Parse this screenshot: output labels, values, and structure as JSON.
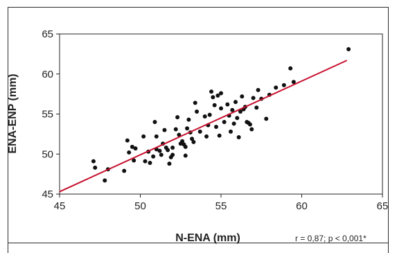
{
  "chart_data": {
    "type": "scatter",
    "title": "",
    "xlabel": "N-ENA (mm)",
    "ylabel": "ENA-ENP (mm)",
    "xlim": [
      45,
      65
    ],
    "ylim": [
      45,
      65
    ],
    "xticks": [
      45,
      50,
      55,
      60,
      65
    ],
    "yticks": [
      45,
      50,
      55,
      60,
      65
    ],
    "grid": false,
    "annotation": "r = 0,87; p < 0,001*",
    "colors": {
      "points": "#111111",
      "trend_line": "#c8102e",
      "frame": "#2a2a2a"
    },
    "trend_line": {
      "x": [
        45.0,
        62.8
      ],
      "y": [
        45.3,
        61.7
      ]
    },
    "series": [
      {
        "points": [
          [
            47.1,
            49.1
          ],
          [
            47.2,
            48.3
          ],
          [
            47.8,
            46.7
          ],
          [
            48.0,
            48.1
          ],
          [
            49.0,
            47.9
          ],
          [
            49.2,
            51.7
          ],
          [
            49.3,
            50.2
          ],
          [
            49.5,
            50.9
          ],
          [
            49.6,
            49.2
          ],
          [
            49.7,
            50.7
          ],
          [
            50.2,
            52.2
          ],
          [
            50.3,
            49.1
          ],
          [
            50.5,
            50.3
          ],
          [
            50.6,
            48.9
          ],
          [
            50.8,
            49.7
          ],
          [
            50.9,
            54.0
          ],
          [
            51.0,
            52.2
          ],
          [
            51.0,
            50.6
          ],
          [
            51.2,
            50.4
          ],
          [
            51.3,
            49.9
          ],
          [
            51.4,
            51.3
          ],
          [
            51.5,
            53.0
          ],
          [
            51.6,
            50.8
          ],
          [
            51.7,
            50.5
          ],
          [
            51.8,
            48.8
          ],
          [
            51.9,
            49.6
          ],
          [
            52.0,
            49.9
          ],
          [
            52.0,
            50.8
          ],
          [
            52.2,
            53.1
          ],
          [
            52.3,
            54.6
          ],
          [
            52.4,
            52.4
          ],
          [
            52.5,
            51.3
          ],
          [
            52.6,
            51.6
          ],
          [
            52.7,
            51.2
          ],
          [
            52.8,
            50.9
          ],
          [
            52.8,
            49.8
          ],
          [
            52.9,
            53.2
          ],
          [
            53.0,
            54.3
          ],
          [
            53.1,
            52.7
          ],
          [
            53.2,
            51.9
          ],
          [
            53.3,
            51.5
          ],
          [
            53.4,
            56.4
          ],
          [
            53.5,
            55.3
          ],
          [
            53.7,
            52.8
          ],
          [
            54.0,
            54.7
          ],
          [
            54.1,
            52.2
          ],
          [
            54.2,
            53.6
          ],
          [
            54.3,
            54.9
          ],
          [
            54.4,
            57.8
          ],
          [
            54.5,
            57.1
          ],
          [
            54.6,
            56.1
          ],
          [
            54.7,
            53.4
          ],
          [
            54.8,
            57.3
          ],
          [
            54.9,
            52.3
          ],
          [
            55.0,
            57.6
          ],
          [
            55.0,
            55.7
          ],
          [
            55.2,
            54.0
          ],
          [
            55.4,
            56.2
          ],
          [
            55.5,
            54.8
          ],
          [
            55.6,
            52.8
          ],
          [
            55.7,
            55.5
          ],
          [
            55.8,
            53.8
          ],
          [
            55.9,
            56.5
          ],
          [
            56.0,
            54.5
          ],
          [
            56.1,
            52.1
          ],
          [
            56.2,
            55.3
          ],
          [
            56.3,
            57.2
          ],
          [
            56.4,
            55.6
          ],
          [
            56.5,
            55.9
          ],
          [
            56.6,
            54.0
          ],
          [
            56.7,
            53.9
          ],
          [
            56.8,
            53.7
          ],
          [
            56.9,
            53.1
          ],
          [
            57.0,
            57.0
          ],
          [
            57.2,
            55.8
          ],
          [
            57.3,
            58.0
          ],
          [
            57.5,
            56.9
          ],
          [
            57.8,
            54.4
          ],
          [
            58.0,
            57.4
          ],
          [
            58.4,
            58.3
          ],
          [
            58.9,
            58.6
          ],
          [
            59.3,
            60.7
          ],
          [
            59.5,
            59.0
          ],
          [
            62.9,
            63.1
          ]
        ]
      }
    ]
  }
}
